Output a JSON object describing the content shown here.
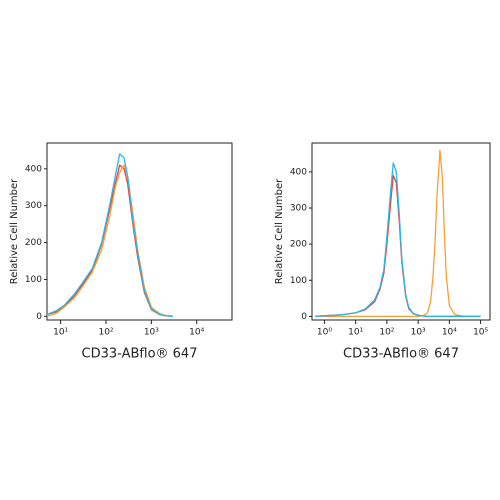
{
  "chart_data": [
    {
      "type": "line",
      "xscale": "log",
      "xlabel": "CD33-ABflo® 647",
      "ylabel": "Relative Cell Number",
      "xlim": [
        5,
        60000
      ],
      "ylim": [
        -10,
        470
      ],
      "xticks": [
        {
          "value": 10,
          "label": "10¹"
        },
        {
          "value": 100,
          "label": "10²"
        },
        {
          "value": 1000,
          "label": "10³"
        },
        {
          "value": 10000,
          "label": "10⁴"
        }
      ],
      "yticks": [
        0,
        100,
        200,
        300,
        400
      ],
      "x": [
        5,
        8,
        12,
        20,
        30,
        50,
        80,
        120,
        160,
        200,
        250,
        300,
        400,
        500,
        700,
        1000,
        1500,
        2000,
        3000
      ],
      "series": [
        {
          "color": "#e8403a",
          "values": [
            5,
            12,
            28,
            55,
            85,
            125,
            195,
            290,
            360,
            410,
            400,
            360,
            240,
            160,
            65,
            18,
            5,
            2,
            0
          ]
        },
        {
          "color": "#f5a03a",
          "values": [
            0,
            8,
            25,
            50,
            80,
            120,
            180,
            270,
            350,
            390,
            410,
            380,
            270,
            180,
            80,
            25,
            8,
            3,
            0
          ]
        },
        {
          "color": "#29b6e8",
          "values": [
            5,
            15,
            30,
            60,
            90,
            130,
            200,
            300,
            380,
            440,
            430,
            380,
            250,
            170,
            70,
            20,
            5,
            2,
            0
          ]
        }
      ]
    },
    {
      "type": "line",
      "xscale": "log",
      "xlabel": "CD33-ABflo® 647",
      "ylabel": "Relative Cell Number",
      "xlim": [
        0.4,
        200000
      ],
      "ylim": [
        -10,
        480
      ],
      "xticks": [
        {
          "value": 1,
          "label": "10⁰"
        },
        {
          "value": 10,
          "label": "10¹"
        },
        {
          "value": 100,
          "label": "10²"
        },
        {
          "value": 1000,
          "label": "10³"
        },
        {
          "value": 10000,
          "label": "10⁴"
        },
        {
          "value": 100000,
          "label": "10⁵"
        }
      ],
      "yticks": [
        0,
        100,
        200,
        300,
        400
      ],
      "x": [
        0.5,
        1,
        2,
        5,
        10,
        20,
        40,
        60,
        80,
        100,
        130,
        160,
        200,
        250,
        300,
        400,
        500,
        700,
        1000,
        1500,
        2000,
        2500,
        3000,
        3500,
        4000,
        5000,
        6000,
        7000,
        8000,
        10000,
        15000,
        30000,
        100000
      ],
      "series": [
        {
          "color": "#f5a03a",
          "values": [
            0,
            0,
            0,
            0,
            0,
            0,
            0,
            0,
            0,
            0,
            0,
            0,
            0,
            0,
            0,
            0,
            0,
            0,
            0,
            2,
            10,
            40,
            110,
            210,
            330,
            460,
            380,
            220,
            110,
            30,
            5,
            0,
            0
          ]
        },
        {
          "color": "#e8403a",
          "values": [
            0,
            2,
            3,
            6,
            10,
            18,
            40,
            75,
            120,
            200,
            310,
            390,
            370,
            260,
            150,
            55,
            22,
            7,
            3,
            1,
            0,
            0,
            0,
            0,
            0,
            0,
            0,
            0,
            0,
            0,
            0,
            0,
            0
          ]
        },
        {
          "color": "#29b6e8",
          "values": [
            0,
            2,
            3,
            6,
            10,
            20,
            45,
            80,
            130,
            220,
            340,
            425,
            400,
            280,
            160,
            60,
            25,
            8,
            3,
            1,
            0,
            0,
            0,
            0,
            0,
            0,
            0,
            0,
            0,
            0,
            0,
            0,
            0
          ]
        }
      ]
    }
  ]
}
